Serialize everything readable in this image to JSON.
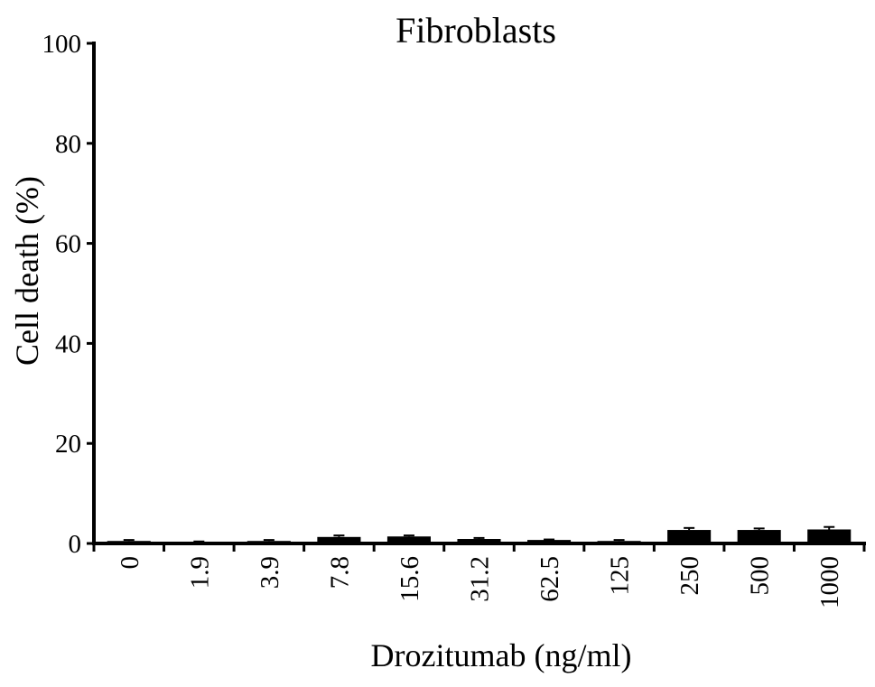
{
  "chart_data": {
    "type": "bar",
    "title": "Fibroblasts",
    "xlabel": "Drozitumab (ng/ml)",
    "ylabel": "Cell death (%)",
    "ylim": [
      0,
      100
    ],
    "yticks": [
      0,
      20,
      40,
      60,
      80,
      100
    ],
    "categories": [
      "0",
      "1.9",
      "3.9",
      "7.8",
      "15.6",
      "31.2",
      "62.5",
      "125",
      "250",
      "500",
      "1000"
    ],
    "values": [
      0.5,
      0.3,
      0.5,
      1.3,
      1.4,
      0.9,
      0.7,
      0.5,
      2.7,
      2.7,
      2.8
    ],
    "errors": [
      0.2,
      0.1,
      0.2,
      0.3,
      0.2,
      0.2,
      0.1,
      0.2,
      0.4,
      0.3,
      0.5
    ],
    "bar_color": "#000000",
    "grid": false,
    "legend": "none"
  }
}
